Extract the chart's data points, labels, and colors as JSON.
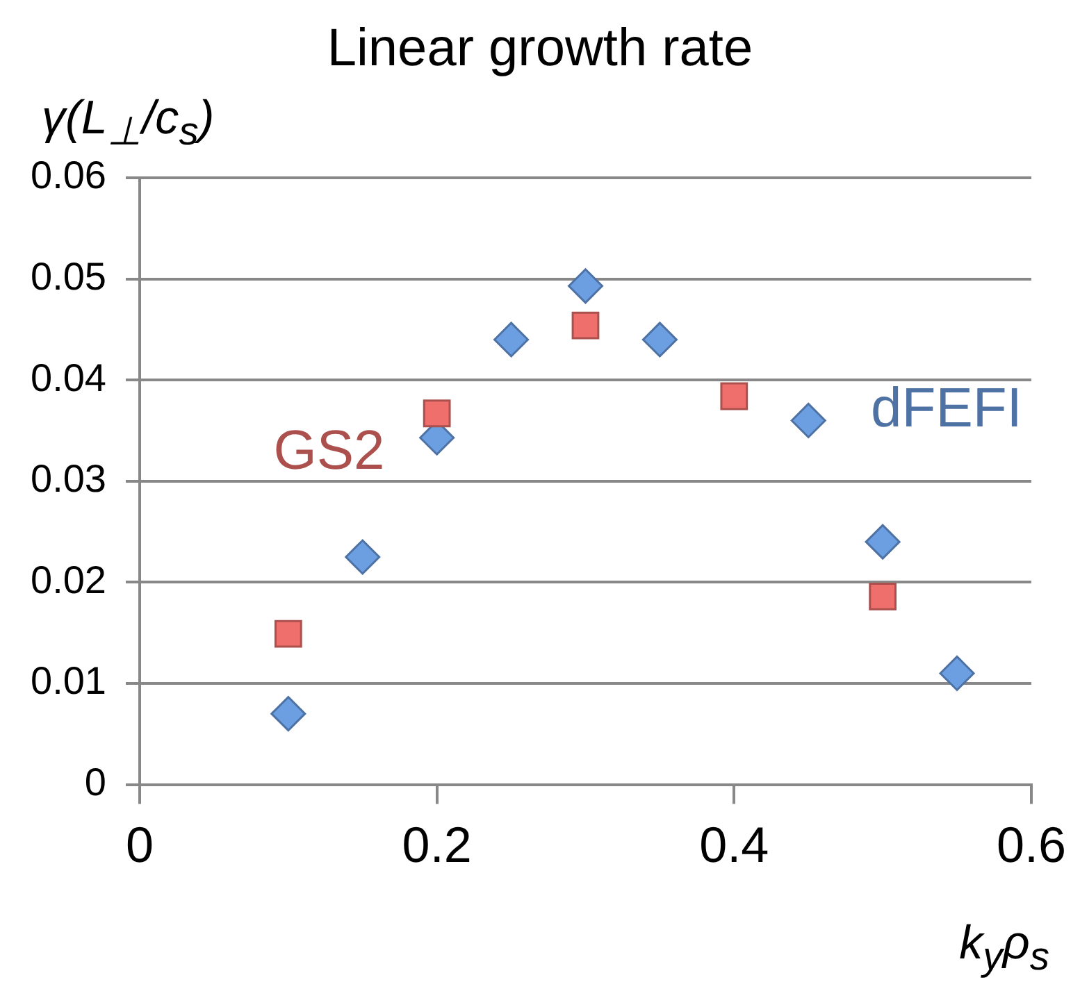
{
  "chart_data": {
    "type": "scatter",
    "title": "Linear growth rate",
    "ylabel": "γ(L$_{⊥}$/c$_{s}$)",
    "xlabel": "k$_{y}$ρ$_{s}$",
    "series": [
      {
        "name": "GS2",
        "color": "#ee6f6b",
        "marker": "square",
        "x": [
          0.1,
          0.2,
          0.3,
          0.4,
          0.5
        ],
        "values": [
          0.0149,
          0.0367,
          0.0454,
          0.0384,
          0.0186
        ]
      },
      {
        "name": "dFEFI",
        "color": "#6c9fe2",
        "marker": "diamond",
        "x": [
          0.1,
          0.15,
          0.2,
          0.25,
          0.3,
          0.35,
          0.45,
          0.5,
          0.55
        ],
        "values": [
          0.007,
          0.0225,
          0.0343,
          0.044,
          0.0493,
          0.044,
          0.036,
          0.024,
          0.011
        ]
      }
    ],
    "xlim": [
      0,
      0.6
    ],
    "xticks": [
      0,
      0.2,
      0.4,
      0.6
    ],
    "ylim": [
      0,
      0.06
    ],
    "yticks": [
      0,
      0.01,
      0.02,
      0.03,
      0.04,
      0.05,
      0.06
    ],
    "grid": "y",
    "legend": false
  }
}
